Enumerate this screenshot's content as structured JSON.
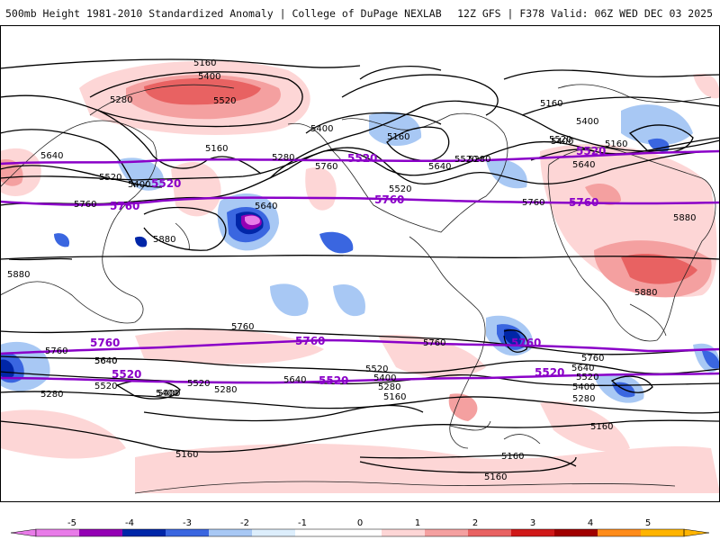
{
  "header": {
    "left": "500mb Height 1981-2010 Standardized Anomaly | College of DuPage NEXLAB",
    "right": "12Z GFS | F378 Valid: 06Z WED DEC 03 2025"
  },
  "colors": {
    "ocean": "#ffffff",
    "coast": "#222222",
    "contour": "#000000",
    "highlight": "#8a00c8"
  },
  "contour_labels": [
    "5160",
    "5400",
    "5520",
    "5280",
    "5160",
    "5280",
    "5400",
    "5160",
    "5640",
    "5520",
    "5400",
    "5880",
    "5760",
    "5640",
    "5520",
    "5160",
    "5400",
    "5640",
    "5520",
    "5760",
    "5400",
    "5160",
    "5520",
    "5280",
    "5640",
    "5880",
    "5760",
    "5880",
    "5880",
    "5760",
    "5640",
    "5520",
    "5400",
    "5280",
    "5640",
    "5520",
    "5400",
    "5280",
    "5160",
    "5160",
    "5160",
    "5160",
    "5760",
    "5640",
    "5520",
    "5400",
    "5280",
    "5160",
    "5760",
    "5760",
    "5640",
    "5520",
    "5400",
    "5280"
  ],
  "highlight_labels": [
    "5520",
    "5520",
    "5520",
    "5760",
    "5760",
    "5760",
    "5760",
    "5760",
    "5760",
    "5520",
    "5520",
    "5520"
  ],
  "colorbar": {
    "ticks": [
      "-5",
      "-4",
      "-3",
      "-2",
      "-1",
      "0",
      "1",
      "2",
      "3",
      "4",
      "5"
    ],
    "colors": [
      "#e87be8",
      "#9400b4",
      "#0026a8",
      "#3a66e0",
      "#a8c8f4",
      "#ddeefc",
      "#ffffff",
      "#ffffff",
      "#fdd6d6",
      "#f4a0a0",
      "#e86262",
      "#d01818",
      "#a00000",
      "#ff8c1a",
      "#ffb400"
    ]
  }
}
